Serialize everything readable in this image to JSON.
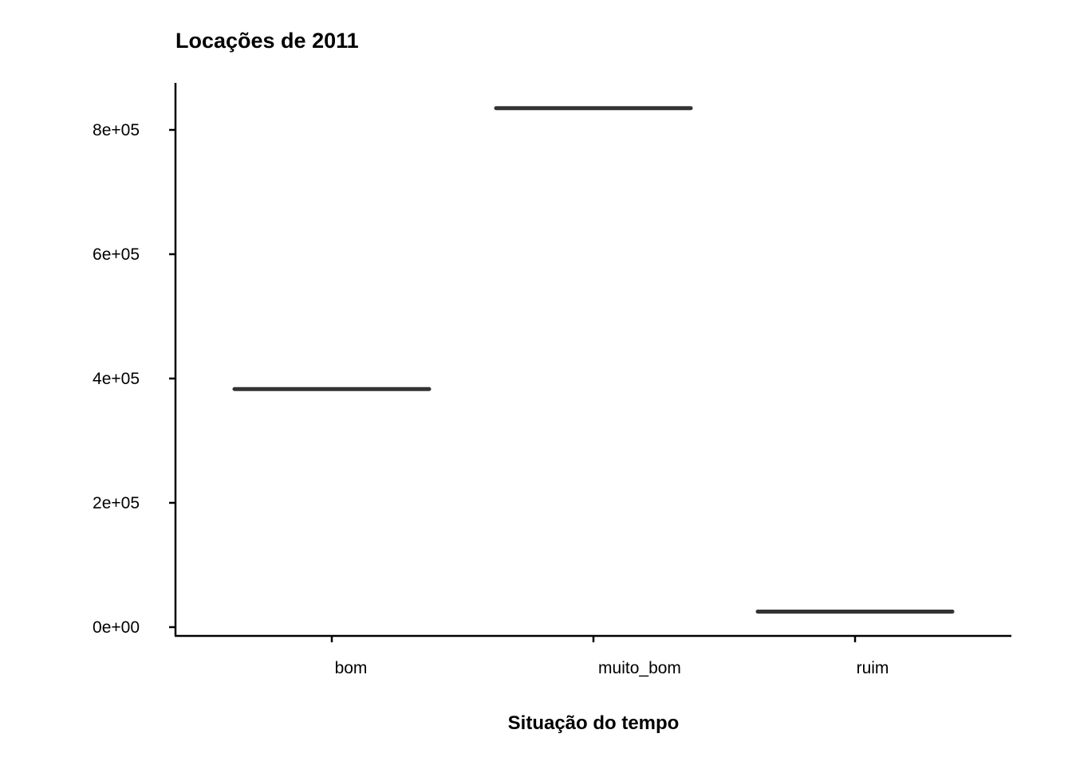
{
  "chart_data": {
    "type": "bar",
    "title": "Locações de 2011",
    "xlabel": "Situação do tempo",
    "ylabel": "",
    "categories": [
      "bom",
      "muito_bom",
      "ruim"
    ],
    "values": [
      383000,
      835000,
      25000
    ],
    "ylim": [
      0,
      880000
    ],
    "yticks": [
      0,
      200000,
      400000,
      600000,
      800000
    ],
    "ytick_labels": [
      "0e+00",
      "2e+05",
      "4e+05",
      "6e+05",
      "8e+05"
    ],
    "grid": false,
    "legend": "none",
    "colors": {
      "mark": "#333333",
      "axis": "#000000",
      "background": "#ffffff"
    }
  }
}
